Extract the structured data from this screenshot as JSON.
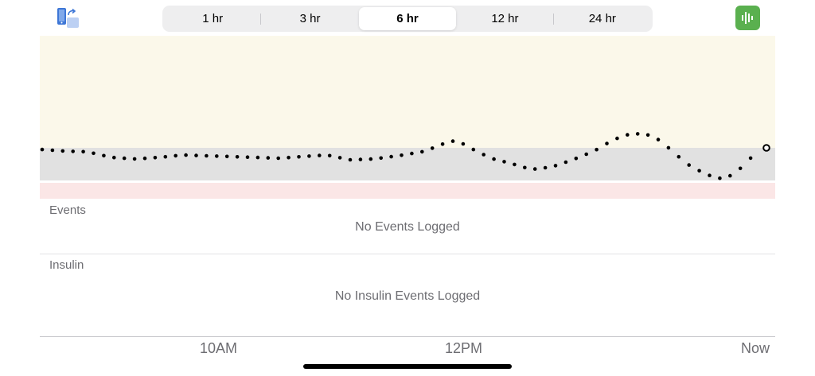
{
  "toolbar": {
    "rotate_icon": "rotate-device-icon",
    "live_icon": "waveform-icon",
    "live_color": "#5ab04f",
    "segments": [
      "1 hr",
      "3 hr",
      "6 hr",
      "12 hr",
      "24 hr"
    ],
    "selected_segment": "6 hr"
  },
  "glucose_chart": {
    "colors": {
      "high_zone": "#fbf8ea",
      "target_range": "#e1e1e1",
      "low_zone": "#fbe6e6",
      "reading_dots": "#000000"
    },
    "readings_note": "relative trend only; no glucose values are printed on screen",
    "latest_reading_marker": "hollow-circle"
  },
  "events": {
    "title": "Events",
    "empty_message": "No Events Logged"
  },
  "insulin": {
    "title": "Insulin",
    "empty_message": "No Insulin Events Logged"
  },
  "time_axis": {
    "ticks": [
      "10AM",
      "12PM",
      "Now"
    ]
  }
}
